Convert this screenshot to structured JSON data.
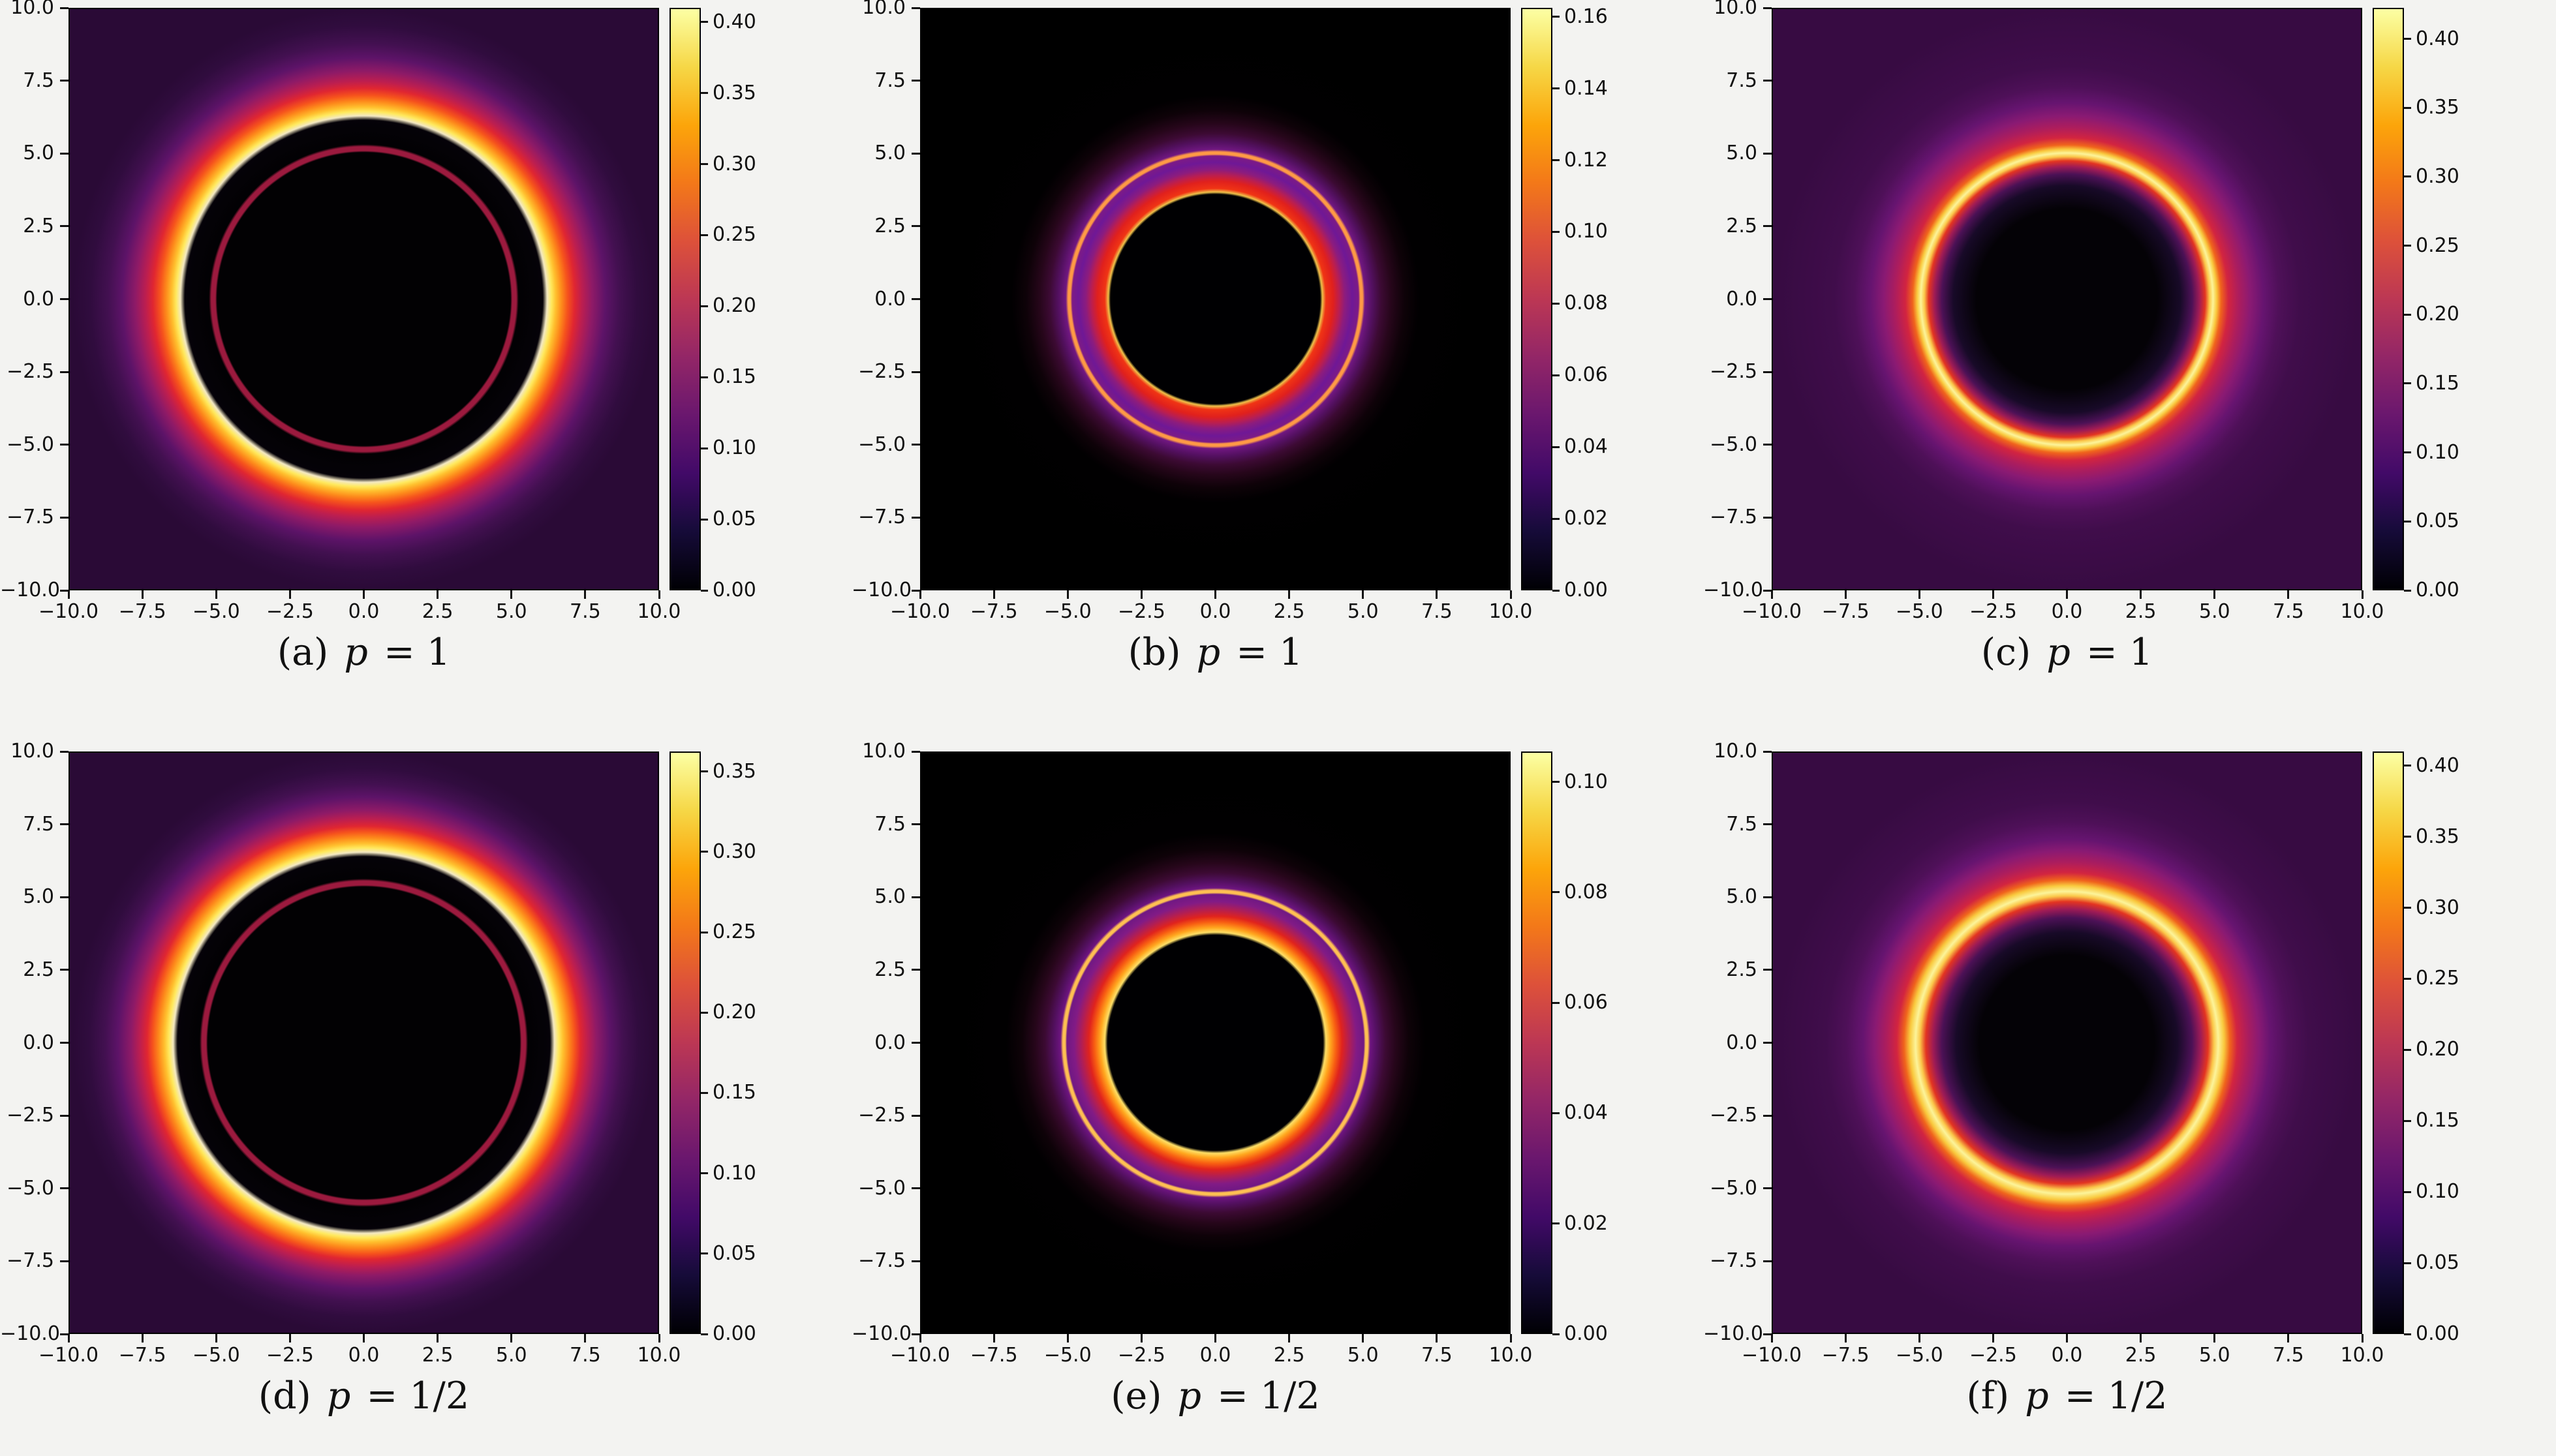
{
  "figure": {
    "background": "#f3f3f1",
    "text_color": "#111111",
    "colormap_name": "inferno",
    "colormap_colors": [
      "#000004",
      "#160b39",
      "#420a68",
      "#6a176e",
      "#932667",
      "#bc3754",
      "#dd513a",
      "#f37819",
      "#fca50a",
      "#f6d746",
      "#fcffa4"
    ],
    "axis_tick_labels": [
      "−10.0",
      "−7.5",
      "−5.0",
      "−2.5",
      "0.0",
      "2.5",
      "5.0",
      "7.5",
      "10.0"
    ],
    "panels": [
      {
        "letter": "(a)",
        "variable": "p",
        "equation": "= 1",
        "caption_text": "(a) p = 1",
        "colorbar_tick_labels": [
          "0.00",
          "0.05",
          "0.10",
          "0.15",
          "0.20",
          "0.25",
          "0.30",
          "0.35",
          "0.40"
        ],
        "colorbar_tick_values": [
          0,
          0.05,
          0.1,
          0.15,
          0.2,
          0.25,
          0.3,
          0.35,
          0.4
        ],
        "colorbar_vmax": 0.41,
        "plot_background": "#2a0a36",
        "radial_stops": [
          [
            0,
            "#020103"
          ],
          [
            50.4,
            "#020103"
          ],
          [
            51.0,
            "#9c1a3e"
          ],
          [
            52.4,
            "#9c1a3e"
          ],
          [
            53.2,
            "#020103"
          ],
          [
            61.5,
            "#050208"
          ],
          [
            63.0,
            "#f4e9c3"
          ],
          [
            64.5,
            "#ffe95e"
          ],
          [
            66.0,
            "#ffc02e"
          ],
          [
            68.0,
            "#fd8a1b"
          ],
          [
            70.0,
            "#f6541c"
          ],
          [
            72.5,
            "#e02631"
          ],
          [
            75.0,
            "#bc1e50"
          ],
          [
            78.5,
            "#8e1a67"
          ],
          [
            83.0,
            "#5d1368"
          ],
          [
            88.0,
            "#421050"
          ],
          [
            94.0,
            "#300c3e"
          ],
          [
            100,
            "#2a0a36"
          ]
        ]
      },
      {
        "letter": "(b)",
        "variable": "p",
        "equation": "= 1",
        "caption_text": "(b) p = 1",
        "colorbar_tick_labels": [
          "0.00",
          "0.02",
          "0.04",
          "0.06",
          "0.08",
          "0.10",
          "0.12",
          "0.14",
          "0.16"
        ],
        "colorbar_tick_values": [
          0,
          0.02,
          0.04,
          0.06,
          0.08,
          0.1,
          0.12,
          0.14,
          0.16
        ],
        "colorbar_vmax": 0.1625,
        "plot_background": "#000000",
        "radial_stops": [
          [
            0,
            "#000002"
          ],
          [
            36.0,
            "#000002"
          ],
          [
            36.8,
            "#f0c24a"
          ],
          [
            38.0,
            "#f03414"
          ],
          [
            40.5,
            "#e0201d"
          ],
          [
            42.5,
            "#bc1e4e"
          ],
          [
            44.5,
            "#8c1c7e"
          ],
          [
            47.0,
            "#6f1896"
          ],
          [
            49.2,
            "#7c1a86"
          ],
          [
            49.8,
            "#ff9a45"
          ],
          [
            50.6,
            "#ff9a45"
          ],
          [
            51.4,
            "#701781"
          ],
          [
            54.0,
            "#531060"
          ],
          [
            57.0,
            "#3c0a33"
          ],
          [
            60.5,
            "#26061a"
          ],
          [
            65.0,
            "#0e0208"
          ],
          [
            70.0,
            "#010001"
          ],
          [
            100,
            "#000000"
          ]
        ]
      },
      {
        "letter": "(c)",
        "variable": "p",
        "equation": "= 1",
        "caption_text": "(c) p = 1",
        "colorbar_tick_labels": [
          "0.00",
          "0.05",
          "0.10",
          "0.15",
          "0.20",
          "0.25",
          "0.30",
          "0.35",
          "0.40"
        ],
        "colorbar_tick_values": [
          0,
          0.05,
          0.1,
          0.15,
          0.2,
          0.25,
          0.3,
          0.35,
          0.4
        ],
        "colorbar_vmax": 0.4225,
        "plot_background": "#370b42",
        "radial_stops": [
          [
            0,
            "#040206"
          ],
          [
            31.0,
            "#040206"
          ],
          [
            39.0,
            "#180a28"
          ],
          [
            43.0,
            "#4c1156"
          ],
          [
            45.5,
            "#9e1b56"
          ],
          [
            47.5,
            "#e33421"
          ],
          [
            49.0,
            "#fbc84a"
          ],
          [
            50.2,
            "#fcf49a"
          ],
          [
            51.5,
            "#f9c93e"
          ],
          [
            53.0,
            "#f0641c"
          ],
          [
            55.5,
            "#d22440"
          ],
          [
            59.0,
            "#ad1d5d"
          ],
          [
            63.0,
            "#8a1a73"
          ],
          [
            67.5,
            "#661470"
          ],
          [
            73.0,
            "#4e1058"
          ],
          [
            80.0,
            "#400d4b"
          ],
          [
            100,
            "#370b42"
          ]
        ]
      },
      {
        "letter": "(d)",
        "variable": "p",
        "equation": "= 1/2",
        "caption_text": "(d) p = 1/2",
        "colorbar_tick_labels": [
          "0.00",
          "0.05",
          "0.10",
          "0.15",
          "0.20",
          "0.25",
          "0.30",
          "0.35"
        ],
        "colorbar_tick_values": [
          0,
          0.05,
          0.1,
          0.15,
          0.2,
          0.25,
          0.3,
          0.35
        ],
        "colorbar_vmax": 0.3625,
        "plot_background": "#2a0a36",
        "radial_stops": [
          [
            0,
            "#020103"
          ],
          [
            53.6,
            "#020103"
          ],
          [
            54.2,
            "#9c1a3e"
          ],
          [
            55.6,
            "#9c1a3e"
          ],
          [
            56.4,
            "#020103"
          ],
          [
            64.0,
            "#050208"
          ],
          [
            65.5,
            "#f4e9c3"
          ],
          [
            67.0,
            "#ffe95e"
          ],
          [
            68.5,
            "#ffc02e"
          ],
          [
            70.5,
            "#fd8a1b"
          ],
          [
            72.5,
            "#f6541c"
          ],
          [
            74.5,
            "#e02631"
          ],
          [
            77.0,
            "#bc1e50"
          ],
          [
            80.0,
            "#8e1a67"
          ],
          [
            84.5,
            "#5d1368"
          ],
          [
            89.0,
            "#421050"
          ],
          [
            94.5,
            "#300c3e"
          ],
          [
            100,
            "#2a0a36"
          ]
        ]
      },
      {
        "letter": "(e)",
        "variable": "p",
        "equation": "= 1/2",
        "caption_text": "(e) p = 1/2",
        "colorbar_tick_labels": [
          "0.00",
          "0.02",
          "0.04",
          "0.06",
          "0.08",
          "0.10"
        ],
        "colorbar_tick_values": [
          0,
          0.02,
          0.04,
          0.06,
          0.08,
          0.1
        ],
        "colorbar_vmax": 0.1055,
        "plot_background": "#000000",
        "radial_stops": [
          [
            0,
            "#000002"
          ],
          [
            37.0,
            "#000002"
          ],
          [
            38.0,
            "#ffdf66"
          ],
          [
            39.5,
            "#ffa81f"
          ],
          [
            41.5,
            "#f85f12"
          ],
          [
            43.5,
            "#e0231d"
          ],
          [
            46.0,
            "#b01e55"
          ],
          [
            48.5,
            "#821b85"
          ],
          [
            51.0,
            "#701884"
          ],
          [
            51.6,
            "#ffc052"
          ],
          [
            52.4,
            "#ffc052"
          ],
          [
            53.2,
            "#6d1480"
          ],
          [
            55.5,
            "#531060"
          ],
          [
            58.5,
            "#3c0a33"
          ],
          [
            62.0,
            "#26061a"
          ],
          [
            66.5,
            "#0e0208"
          ],
          [
            72.0,
            "#010001"
          ],
          [
            100,
            "#000000"
          ]
        ]
      },
      {
        "letter": "(f)",
        "variable": "p",
        "equation": "= 1/2",
        "caption_text": "(f) p = 1/2",
        "colorbar_tick_labels": [
          "0.00",
          "0.05",
          "0.10",
          "0.15",
          "0.20",
          "0.25",
          "0.30",
          "0.35",
          "0.40"
        ],
        "colorbar_tick_values": [
          0,
          0.05,
          0.1,
          0.15,
          0.2,
          0.25,
          0.3,
          0.35,
          0.4
        ],
        "colorbar_vmax": 0.41,
        "plot_background": "#370b42",
        "radial_stops": [
          [
            0,
            "#040206"
          ],
          [
            30.0,
            "#040206"
          ],
          [
            38.0,
            "#180a28"
          ],
          [
            43.0,
            "#4c1156"
          ],
          [
            46.0,
            "#9e1b56"
          ],
          [
            48.5,
            "#e33421"
          ],
          [
            50.5,
            "#fbc84a"
          ],
          [
            52.0,
            "#fcf49a"
          ],
          [
            54.0,
            "#f9c93e"
          ],
          [
            56.0,
            "#f0641c"
          ],
          [
            58.5,
            "#d22440"
          ],
          [
            62.0,
            "#ad1d5d"
          ],
          [
            66.0,
            "#8a1a73"
          ],
          [
            70.0,
            "#661470"
          ],
          [
            76.0,
            "#4e1058"
          ],
          [
            83.0,
            "#400d4b"
          ],
          [
            100,
            "#370b42"
          ]
        ]
      }
    ]
  },
  "chart_data": [
    {
      "type": "heatmap",
      "panel": "a",
      "caption": "(a) p = 1",
      "colormap": "inferno",
      "x_range": [
        -10,
        10
      ],
      "y_range": [
        -10,
        10
      ],
      "x_ticks": [
        -10,
        -7.5,
        -5,
        -2.5,
        0,
        2.5,
        5,
        7.5,
        10
      ],
      "y_ticks": [
        -10,
        -7.5,
        -5,
        -2.5,
        0,
        2.5,
        5,
        7.5,
        10
      ],
      "colorbar_range": [
        0,
        0.41
      ],
      "colorbar_ticks": [
        0,
        0.05,
        0.1,
        0.15,
        0.2,
        0.25,
        0.3,
        0.35,
        0.4
      ],
      "radial_profile": {
        "shadow_edge_radius": 6.3,
        "photon_ring_peak_radius": 6.5,
        "peak_intensity": 0.41,
        "thin_lensed_ring_radius": 5.2,
        "far_field_intensity": 0.04
      }
    },
    {
      "type": "heatmap",
      "panel": "b",
      "caption": "(b) p = 1",
      "colormap": "inferno",
      "x_range": [
        -10,
        10
      ],
      "y_range": [
        -10,
        10
      ],
      "x_ticks": [
        -10,
        -7.5,
        -5,
        -2.5,
        0,
        2.5,
        5,
        7.5,
        10
      ],
      "y_ticks": [
        -10,
        -7.5,
        -5,
        -2.5,
        0,
        2.5,
        5,
        7.5,
        10
      ],
      "colorbar_range": [
        0,
        0.1625
      ],
      "colorbar_ticks": [
        0,
        0.02,
        0.04,
        0.06,
        0.08,
        0.1,
        0.12,
        0.14,
        0.16
      ],
      "radial_profile": {
        "shadow_edge_radius": 3.7,
        "rim_peak_radius": 3.9,
        "peak_intensity": 0.16,
        "thin_lensed_ring_radius": 5.0,
        "far_field_intensity": 0.0
      }
    },
    {
      "type": "heatmap",
      "panel": "c",
      "caption": "(c) p = 1",
      "colormap": "inferno",
      "x_range": [
        -10,
        10
      ],
      "y_range": [
        -10,
        10
      ],
      "x_ticks": [
        -10,
        -7.5,
        -5,
        -2.5,
        0,
        2.5,
        5,
        7.5,
        10
      ],
      "y_ticks": [
        -10,
        -7.5,
        -5,
        -2.5,
        0,
        2.5,
        5,
        7.5,
        10
      ],
      "colorbar_range": [
        0,
        0.4225
      ],
      "colorbar_ticks": [
        0,
        0.05,
        0.1,
        0.15,
        0.2,
        0.25,
        0.3,
        0.35,
        0.4
      ],
      "radial_profile": {
        "shadow_edge_radius": 3.5,
        "ring_peak_radius": 5.0,
        "peak_intensity": 0.42,
        "far_field_intensity": 0.07
      }
    },
    {
      "type": "heatmap",
      "panel": "d",
      "caption": "(d) p = 1/2",
      "colormap": "inferno",
      "x_range": [
        -10,
        10
      ],
      "y_range": [
        -10,
        10
      ],
      "x_ticks": [
        -10,
        -7.5,
        -5,
        -2.5,
        0,
        2.5,
        5,
        7.5,
        10
      ],
      "y_ticks": [
        -10,
        -7.5,
        -5,
        -2.5,
        0,
        2.5,
        5,
        7.5,
        10
      ],
      "colorbar_range": [
        0,
        0.3625
      ],
      "colorbar_ticks": [
        0,
        0.05,
        0.1,
        0.15,
        0.2,
        0.25,
        0.3,
        0.35
      ],
      "radial_profile": {
        "shadow_edge_radius": 6.5,
        "photon_ring_peak_radius": 6.8,
        "peak_intensity": 0.37,
        "thin_lensed_ring_radius": 5.5,
        "far_field_intensity": 0.04
      }
    },
    {
      "type": "heatmap",
      "panel": "e",
      "caption": "(e) p = 1/2",
      "colormap": "inferno",
      "x_range": [
        -10,
        10
      ],
      "y_range": [
        -10,
        10
      ],
      "x_ticks": [
        -10,
        -7.5,
        -5,
        -2.5,
        0,
        2.5,
        5,
        7.5,
        10
      ],
      "y_ticks": [
        -10,
        -7.5,
        -5,
        -2.5,
        0,
        2.5,
        5,
        7.5,
        10
      ],
      "colorbar_range": [
        0,
        0.1055
      ],
      "colorbar_ticks": [
        0,
        0.02,
        0.04,
        0.06,
        0.08,
        0.1
      ],
      "radial_profile": {
        "shadow_edge_radius": 3.8,
        "rim_peak_radius": 4.0,
        "peak_intensity": 0.105,
        "thin_lensed_ring_radius": 5.25,
        "far_field_intensity": 0.0
      }
    },
    {
      "type": "heatmap",
      "panel": "f",
      "caption": "(f) p = 1/2",
      "colormap": "inferno",
      "x_range": [
        -10,
        10
      ],
      "y_range": [
        -10,
        10
      ],
      "x_ticks": [
        -10,
        -7.5,
        -5,
        -2.5,
        0,
        2.5,
        5,
        7.5,
        10
      ],
      "y_ticks": [
        -10,
        -7.5,
        -5,
        -2.5,
        0,
        2.5,
        5,
        7.5,
        10
      ],
      "colorbar_range": [
        0,
        0.41
      ],
      "colorbar_ticks": [
        0,
        0.05,
        0.1,
        0.15,
        0.2,
        0.25,
        0.3,
        0.35,
        0.4
      ],
      "radial_profile": {
        "shadow_edge_radius": 3.5,
        "ring_peak_radius": 5.3,
        "peak_intensity": 0.41,
        "far_field_intensity": 0.07
      }
    }
  ]
}
